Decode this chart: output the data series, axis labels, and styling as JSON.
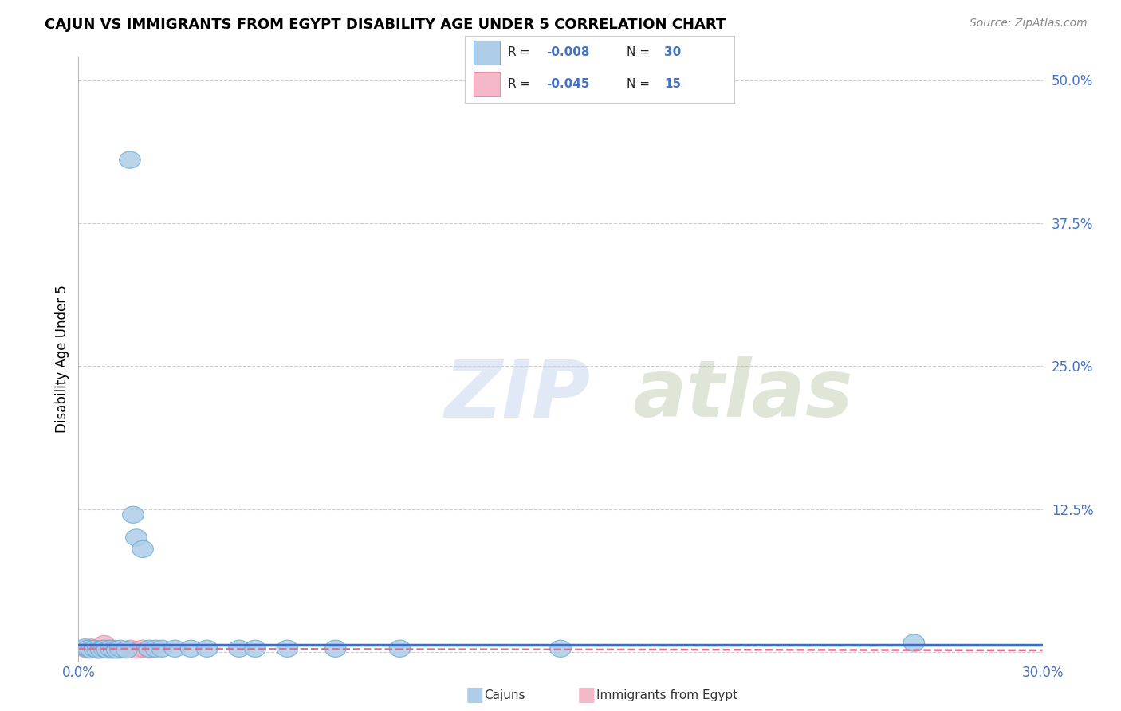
{
  "title": "CAJUN VS IMMIGRANTS FROM EGYPT DISABILITY AGE UNDER 5 CORRELATION CHART",
  "source": "Source: ZipAtlas.com",
  "ylabel": "Disability Age Under 5",
  "xmin": 0.0,
  "xmax": 0.3,
  "ymin": -0.008,
  "ymax": 0.52,
  "cajun_R": -0.008,
  "cajun_N": 30,
  "egypt_R": -0.045,
  "egypt_N": 15,
  "cajun_color": "#aecde8",
  "cajun_edge_color": "#6baed6",
  "cajun_line_color": "#3c6fbe",
  "egypt_color": "#f4b8c8",
  "egypt_edge_color": "#e890a8",
  "egypt_line_color": "#e07090",
  "legend_cajun_label": "Cajuns",
  "legend_egypt_label": "Immigrants from Egypt",
  "watermark_zip": "ZIP",
  "watermark_atlas": "atlas",
  "grid_color": "#cccccc",
  "cajun_x": [
    0.002,
    0.003,
    0.004,
    0.005,
    0.006,
    0.007,
    0.008,
    0.009,
    0.01,
    0.011,
    0.012,
    0.013,
    0.015,
    0.017,
    0.018,
    0.02,
    0.022,
    0.024,
    0.026,
    0.03,
    0.035,
    0.04,
    0.05,
    0.055,
    0.065,
    0.08,
    0.1,
    0.15,
    0.26,
    0.016
  ],
  "cajun_y": [
    0.004,
    0.003,
    0.002,
    0.003,
    0.002,
    0.002,
    0.003,
    0.002,
    0.003,
    0.002,
    0.002,
    0.003,
    0.002,
    0.12,
    0.1,
    0.09,
    0.003,
    0.003,
    0.003,
    0.003,
    0.003,
    0.003,
    0.003,
    0.003,
    0.003,
    0.003,
    0.003,
    0.003,
    0.008,
    0.43
  ],
  "egypt_x": [
    0.002,
    0.003,
    0.004,
    0.005,
    0.006,
    0.007,
    0.008,
    0.009,
    0.01,
    0.011,
    0.013,
    0.016,
    0.018,
    0.02,
    0.022
  ],
  "egypt_y": [
    0.003,
    0.002,
    0.004,
    0.003,
    0.002,
    0.003,
    0.007,
    0.003,
    0.002,
    0.003,
    0.002,
    0.003,
    0.002,
    0.003,
    0.002
  ],
  "cajun_trend_y0": 0.0065,
  "cajun_trend_y1": 0.0065,
  "egypt_trend_y0": 0.003,
  "egypt_trend_y1": 0.0015,
  "ytick_vals": [
    0.0,
    0.125,
    0.25,
    0.375,
    0.5
  ],
  "ytick_labels": [
    "",
    "12.5%",
    "25.0%",
    "37.5%",
    "50.0%"
  ]
}
